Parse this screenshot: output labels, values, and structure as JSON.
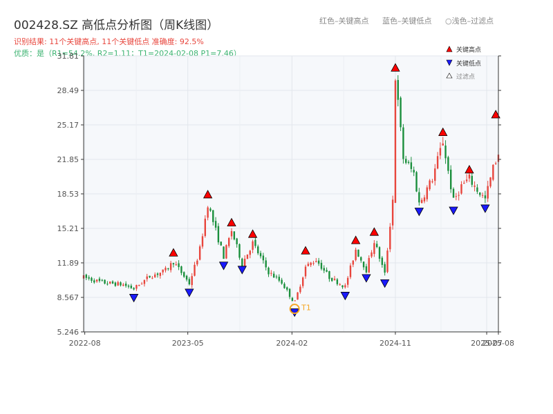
{
  "header": {
    "title": "002428.SZ 高低点分析图（周K线图）",
    "result_line": "识别结果: 11个关键高点, 11个关键低点   准确度: 92.5%",
    "quality_line": "优质：是（R1=54.2%, R2=1.11；T1=2024-02-08 P1=7.46）"
  },
  "top_legend": {
    "red": "红色–关键高点",
    "blue": "蓝色–关键低点",
    "light": "○浅色–过滤点"
  },
  "legend": {
    "high": "关键高点",
    "low": "关键低点",
    "filtered": "过滤点"
  },
  "colors": {
    "up": "#e8453c",
    "down": "#1a8f3c",
    "high_marker": "#ff0000",
    "low_marker": "#1a1aff",
    "t1": "#f5a623",
    "plot_bg": "#f6f8fb"
  },
  "chart_data": {
    "type": "candlestick",
    "title": "002428.SZ 高低点分析图（周K线图）",
    "x_range": [
      "2022-07-29",
      "2025-08-01"
    ],
    "ylim": [
      5.246,
      31.81
    ],
    "y_ticks": [
      5.246,
      8.567,
      11.89,
      15.21,
      18.53,
      21.85,
      25.17,
      28.49,
      31.81
    ],
    "x_ticks": [
      "2022-08",
      "2023-05",
      "2024-02",
      "2024-11",
      "2025-07",
      "2025-08"
    ],
    "grid": true,
    "legend_position": "top-right",
    "price_path": [
      [
        "2022-07-29",
        10.5
      ],
      [
        "2022-09-15",
        10.0
      ],
      [
        "2022-11-10",
        9.8
      ],
      [
        "2022-12-09",
        9.4
      ],
      [
        "2023-01-20",
        10.6
      ],
      [
        "2023-03-01",
        11.1
      ],
      [
        "2023-03-24",
        12.0
      ],
      [
        "2023-05-05",
        9.9
      ],
      [
        "2023-06-01",
        13.0
      ],
      [
        "2023-06-23",
        17.6
      ],
      [
        "2023-07-14",
        15.0
      ],
      [
        "2023-08-04",
        12.5
      ],
      [
        "2023-08-25",
        15.0
      ],
      [
        "2023-09-22",
        11.8
      ],
      [
        "2023-10-20",
        13.8
      ],
      [
        "2023-12-01",
        11.0
      ],
      [
        "2024-01-05",
        10.0
      ],
      [
        "2024-02-08",
        8.0
      ],
      [
        "2024-03-08",
        11.5
      ],
      [
        "2024-04-05",
        12.2
      ],
      [
        "2024-05-10",
        10.5
      ],
      [
        "2024-06-21",
        9.6
      ],
      [
        "2024-07-19",
        13.2
      ],
      [
        "2024-08-16",
        11.2
      ],
      [
        "2024-09-06",
        14.0
      ],
      [
        "2024-10-04",
        10.8
      ],
      [
        "2024-10-25",
        18.0
      ],
      [
        "2024-11-01",
        29.8
      ],
      [
        "2024-11-22",
        22.0
      ],
      [
        "2024-12-20",
        20.5
      ],
      [
        "2025-01-03",
        17.6
      ],
      [
        "2025-02-07",
        20.0
      ],
      [
        "2025-03-07",
        23.6
      ],
      [
        "2025-04-04",
        17.8
      ],
      [
        "2025-04-25",
        19.3
      ],
      [
        "2025-05-16",
        20.0
      ],
      [
        "2025-06-06",
        18.9
      ],
      [
        "2025-06-27",
        18.0
      ],
      [
        "2025-07-18",
        21.0
      ],
      [
        "2025-08-01",
        22.5
      ]
    ],
    "key_highs": [
      {
        "date": "2023-03-24",
        "price": 12.2
      },
      {
        "date": "2023-06-23",
        "price": 17.8
      },
      {
        "date": "2023-08-25",
        "price": 15.1
      },
      {
        "date": "2023-10-20",
        "price": 14.0
      },
      {
        "date": "2024-03-08",
        "price": 12.4
      },
      {
        "date": "2024-07-19",
        "price": 13.4
      },
      {
        "date": "2024-09-06",
        "price": 14.2
      },
      {
        "date": "2024-11-01",
        "price": 30.0
      },
      {
        "date": "2025-03-07",
        "price": 23.8
      },
      {
        "date": "2025-05-16",
        "price": 20.2
      },
      {
        "date": "2025-07-25",
        "price": 25.5
      }
    ],
    "key_lows": [
      {
        "date": "2022-12-09",
        "price": 9.2
      },
      {
        "date": "2023-05-05",
        "price": 9.7
      },
      {
        "date": "2023-08-04",
        "price": 12.3
      },
      {
        "date": "2023-09-22",
        "price": 11.9
      },
      {
        "date": "2024-02-08",
        "price": 7.8
      },
      {
        "date": "2024-06-21",
        "price": 9.4
      },
      {
        "date": "2024-08-16",
        "price": 11.1
      },
      {
        "date": "2024-10-04",
        "price": 10.6
      },
      {
        "date": "2025-01-03",
        "price": 17.5
      },
      {
        "date": "2025-04-04",
        "price": 17.6
      },
      {
        "date": "2025-06-27",
        "price": 17.8
      }
    ],
    "t1": {
      "date": "2024-02-08",
      "price": 7.46,
      "label": "T1"
    }
  }
}
